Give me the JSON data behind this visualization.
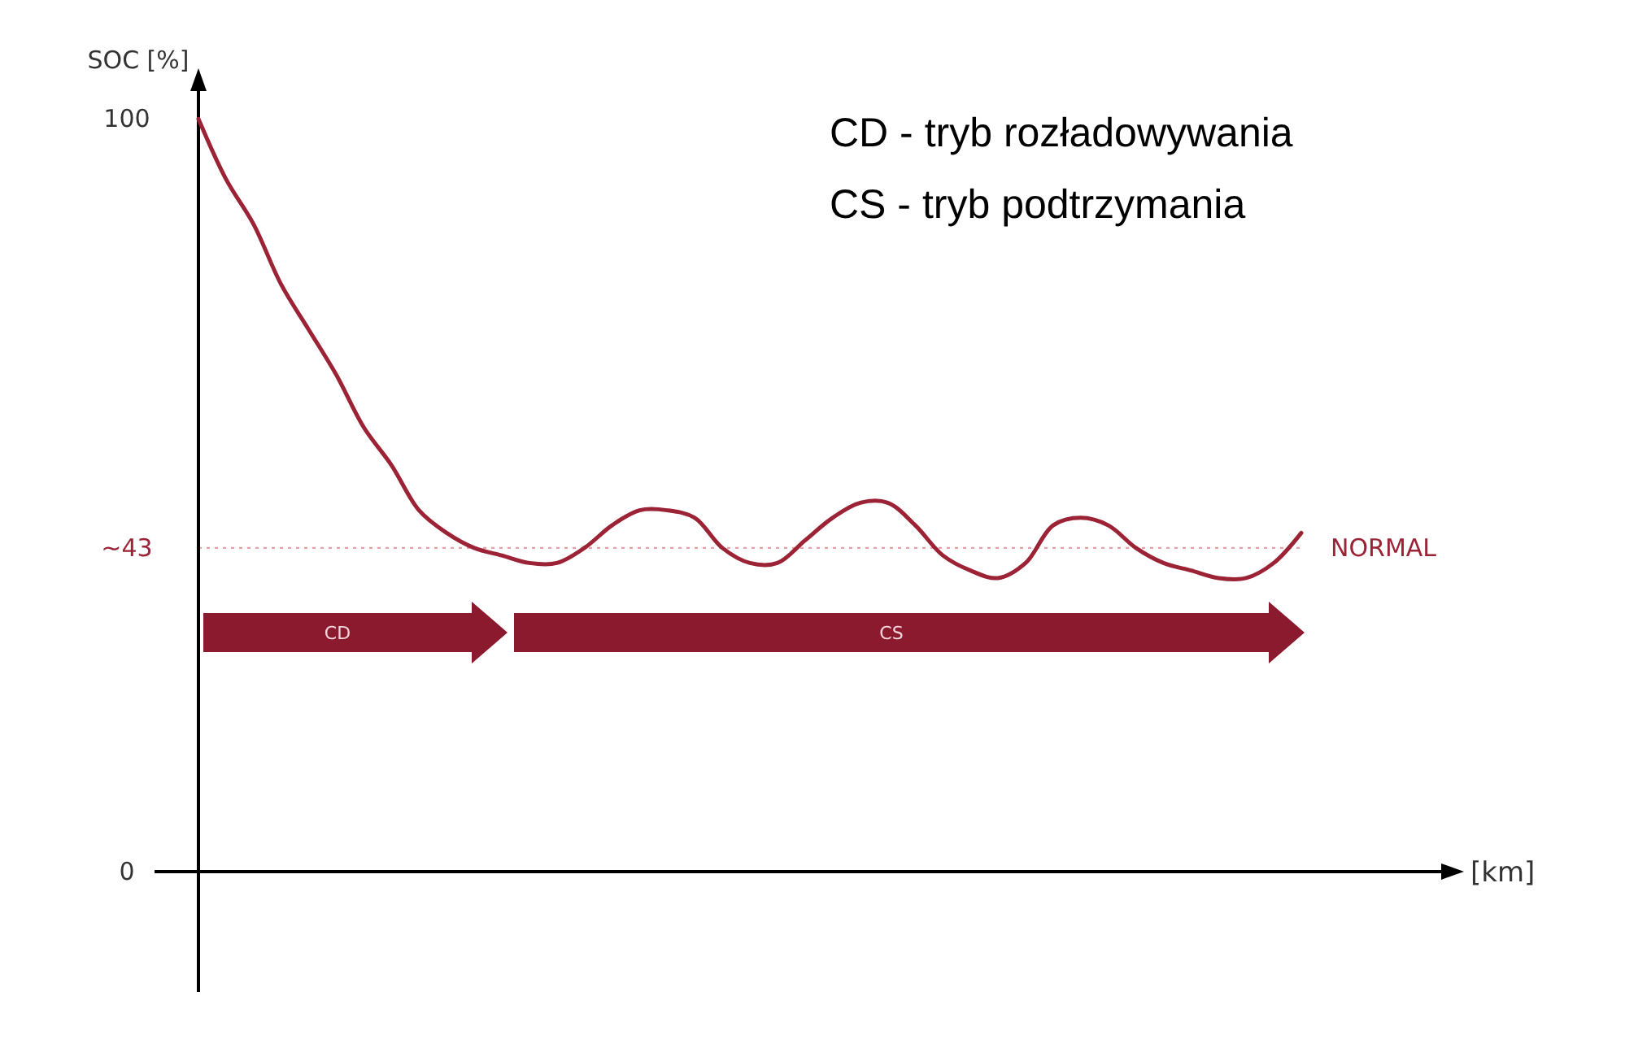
{
  "chart_data": {
    "type": "line",
    "ylabel": "SOC [%]",
    "categories": [
      null,
      null,
      null,
      null,
      null,
      null,
      null,
      null,
      null,
      null,
      null,
      null,
      null,
      null,
      null,
      null,
      null,
      null,
      null,
      null,
      null,
      null,
      null,
      null,
      null,
      null,
      null,
      null,
      null,
      null,
      null,
      null,
      null,
      null,
      null,
      null,
      null,
      null,
      null,
      null,
      null
    ],
    "series": [
      {
        "color": "#9b2335",
        "values": [
          100,
          92,
          86,
          78,
          72,
          66,
          59,
          54,
          48,
          45,
          43,
          42,
          41,
          41,
          43,
          46,
          48,
          48,
          47,
          43,
          41,
          41,
          44,
          47,
          49,
          49,
          46,
          42,
          40,
          39,
          41,
          46,
          47,
          46,
          43,
          41,
          40,
          39,
          39,
          41,
          45
        ]
      }
    ],
    "ylim": [
      -16,
      105
    ],
    "yticks": [
      0,
      {
        "value": 43,
        "label": "~43"
      },
      100
    ],
    "tick_labels": "y",
    "grid": false,
    "marker": "none",
    "line_style": "solid",
    "ref_lines": [
      {
        "axis": "y",
        "value": 43,
        "label": "NORMAL",
        "color": "#e8a0a8",
        "line_style": "dotted"
      }
    ],
    "annotations": [
      "CD - tryb rozładowywania",
      "CS - tryb podtrzymania",
      "CD",
      "CS",
      "[km]"
    ]
  }
}
